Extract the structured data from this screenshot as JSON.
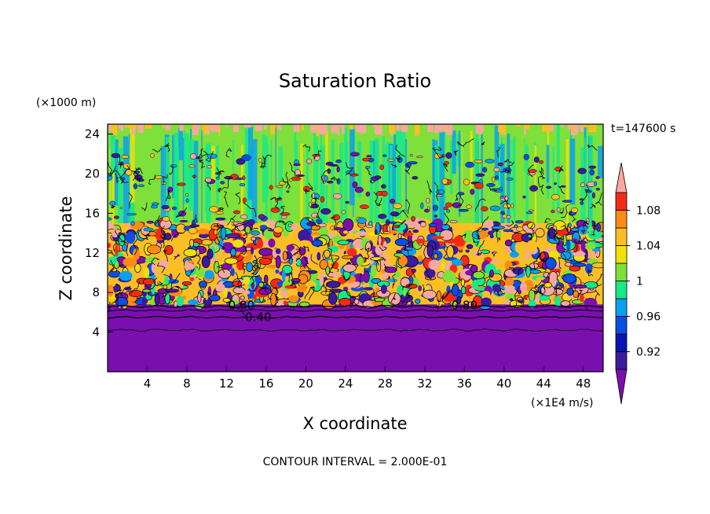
{
  "chart_data": {
    "type": "heatmap",
    "title": "Saturation Ratio",
    "xlabel": "X coordinate",
    "ylabel": "Z coordinate",
    "x_unit": "(×1E4 m/s)",
    "y_unit": "(×1000 m)",
    "time_label": "t=147600 s",
    "footer": "CONTOUR INTERVAL = 2.000E-01",
    "xlim": [
      0,
      50
    ],
    "ylim": [
      0,
      25
    ],
    "x_ticks": [
      4,
      8,
      12,
      16,
      20,
      24,
      28,
      32,
      36,
      40,
      44,
      48
    ],
    "y_ticks": [
      4,
      8,
      12,
      16,
      20,
      24
    ],
    "contour_labels": [
      {
        "text": "0.80",
        "x": 13.5,
        "y": 6.7
      },
      {
        "text": "0.40",
        "x": 15.2,
        "y": 5.5
      },
      {
        "text": "0.80",
        "x": 36.0,
        "y": 6.7
      }
    ],
    "colorbar": {
      "levels": [
        0.9,
        0.92,
        0.94,
        0.96,
        0.98,
        1.0,
        1.02,
        1.04,
        1.06,
        1.08,
        1.1
      ],
      "colors": [
        "#7a0fb0",
        "#3a1a9e",
        "#0a14b4",
        "#0a4ee6",
        "#0aa0f0",
        "#17e88a",
        "#7ee03a",
        "#f0e00a",
        "#fbbf26",
        "#ff8a14",
        "#f52a14",
        "#f7a8a0"
      ],
      "tick_labels": [
        "0.92",
        "0.96",
        "1",
        "1.04",
        "1.08"
      ],
      "tick_values": [
        0.92,
        0.96,
        1.0,
        1.04,
        1.08
      ],
      "extend": "both"
    },
    "layers": [
      {
        "z_min": 0,
        "z_max": 6.8,
        "value": "< 0.9",
        "description_color": "#7a0fb0"
      },
      {
        "z_min": 6.8,
        "z_max": 15,
        "value": "0.9 – 1.1 (mixed)"
      },
      {
        "z_min": 15,
        "z_max": 24.5,
        "value": "≈ 1.0"
      }
    ]
  }
}
